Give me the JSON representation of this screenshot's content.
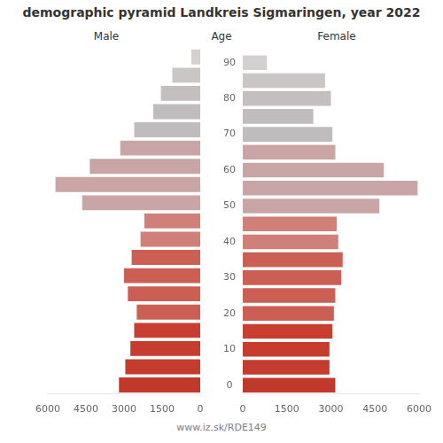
{
  "chart_data": {
    "type": "bar",
    "orientation": "horizontal",
    "title": "demographic pyramid Landkreis Sigmaringen, year 2022",
    "ylabel": "Age",
    "annotations": [
      "www.iz.sk/RDE149"
    ],
    "categories": [
      "0",
      null,
      "10",
      null,
      "20",
      null,
      "30",
      null,
      "40",
      null,
      "50",
      null,
      "60",
      null,
      "70",
      null,
      "80",
      null,
      "90"
    ],
    "series": [
      {
        "name": "Male",
        "colors": [
          "#c0392b",
          "#c33c2e",
          "#c63d2f",
          "#c83f31",
          "#cc5f54",
          "#cc5f54",
          "#cc5f54",
          "#cc5f54",
          "#d07f79",
          "#d07f79",
          "#c9a5a5",
          "#c9a5a5",
          "#c9a5a5",
          "#c9a5a5",
          "#c0bcbe",
          "#c0bcbe",
          "#c4bebe",
          "#cac6c6",
          "#d4d0d0"
        ],
        "values": [
          3200,
          2950,
          2750,
          2600,
          2500,
          2850,
          3000,
          2700,
          2350,
          2200,
          4650,
          5700,
          4350,
          3150,
          2600,
          1850,
          1550,
          1100,
          350
        ]
      },
      {
        "name": "Female",
        "colors": [
          "#c0392b",
          "#c33c2e",
          "#c63d2f",
          "#c83f31",
          "#cc5f54",
          "#cc5f54",
          "#cc5f54",
          "#cc5f54",
          "#d07f79",
          "#d07f79",
          "#c9a5a5",
          "#c9a5a5",
          "#c9a5a5",
          "#c9a5a5",
          "#c0bcbe",
          "#c0bcbe",
          "#c4bebe",
          "#cac6c6",
          "#d4d0d0"
        ],
        "values": [
          3150,
          2950,
          2950,
          3050,
          3100,
          3150,
          3350,
          3400,
          3250,
          3200,
          4650,
          5950,
          4800,
          3150,
          3050,
          2400,
          3000,
          2800,
          820
        ]
      }
    ],
    "xlim": [
      0,
      6000
    ],
    "xticks": [
      0,
      1500,
      3000,
      4500,
      6000
    ],
    "grid": false
  }
}
